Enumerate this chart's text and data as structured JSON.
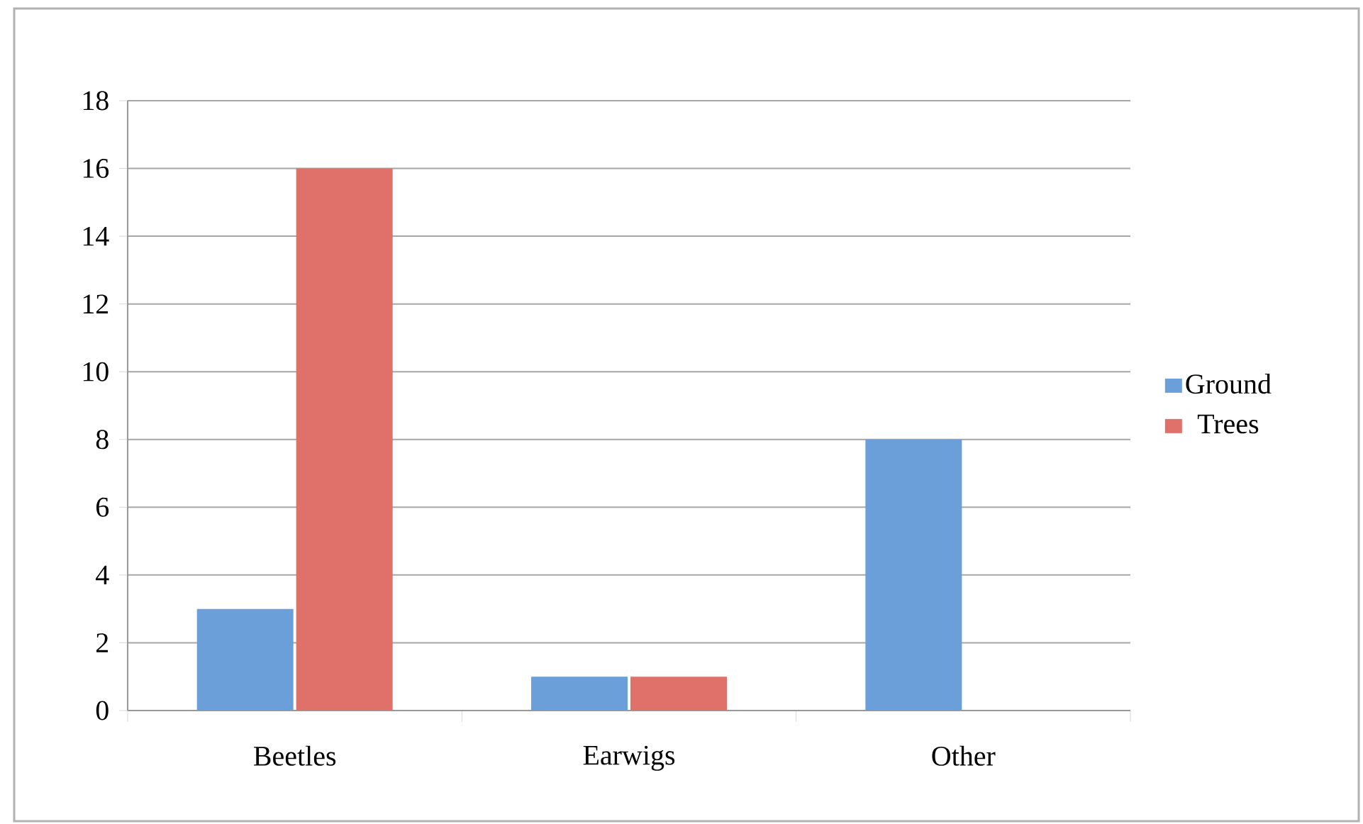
{
  "chart_data": {
    "type": "bar",
    "categories": [
      "Beetles",
      "Earwigs",
      "Other"
    ],
    "series": [
      {
        "name": "Ground",
        "color": "#6b9fd9",
        "values": [
          3,
          1,
          8
        ]
      },
      {
        "name": "Trees",
        "color": "#e0706a",
        "values": [
          16,
          1,
          0
        ]
      }
    ],
    "ylim": [
      0,
      18
    ],
    "yticks": [
      0,
      2,
      4,
      6,
      8,
      10,
      12,
      14,
      16,
      18
    ],
    "grid": "y",
    "legend": "right"
  }
}
